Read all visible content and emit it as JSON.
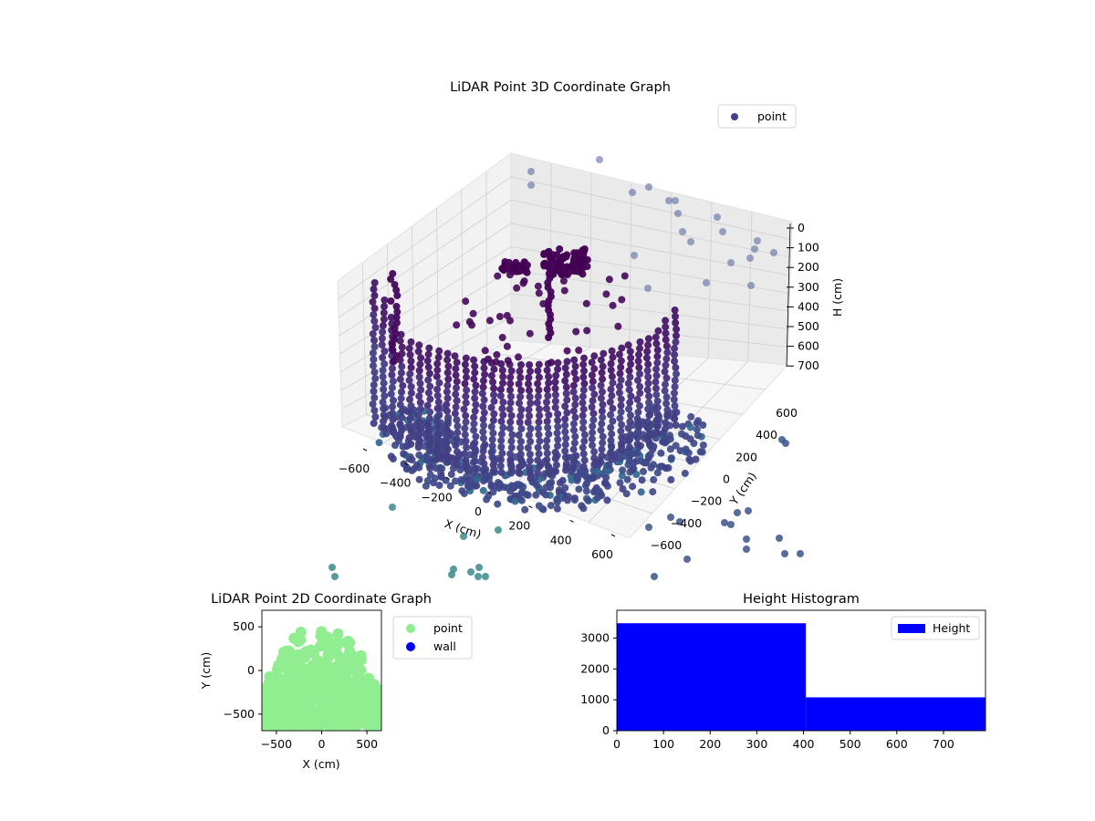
{
  "chart_data": [
    {
      "type": "scatter3d",
      "title": "LiDAR Point 3D Coordinate Graph",
      "xlabel": "X (cm)",
      "ylabel": "Y (cm)",
      "zlabel": "H (cm)",
      "x_ticks": [
        "−600",
        "−400",
        "−200",
        "0",
        "200",
        "400",
        "600"
      ],
      "y_ticks": [
        "−600",
        "−400",
        "−200",
        "0",
        "200",
        "400",
        "600"
      ],
      "z_ticks": [
        "0",
        "100",
        "200",
        "300",
        "400",
        "500",
        "600",
        "700"
      ],
      "xlim": [
        -650,
        650
      ],
      "ylim": [
        -650,
        650
      ],
      "zlim": [
        0,
        750
      ],
      "z_inverted": true,
      "legend": {
        "label": "point",
        "placement": "top-right"
      },
      "colors": {
        "high": "#440154",
        "mid": "#3b528b",
        "low": "#21918c"
      },
      "grid": true
    },
    {
      "type": "scatter",
      "title": "LiDAR Point 2D Coordinate Graph",
      "xlabel": "X (cm)",
      "ylabel": "Y (cm)",
      "x_ticks": [
        "−500",
        "0",
        "500"
      ],
      "y_ticks": [
        "500",
        "0",
        "−500"
      ],
      "xlim": [
        -660,
        660
      ],
      "ylim": [
        -690,
        690
      ],
      "series": [
        {
          "name": "point",
          "color": "#90ee90"
        },
        {
          "name": "wall",
          "color": "#0000ff"
        }
      ],
      "legend": {
        "placement": "outside-right"
      }
    },
    {
      "type": "bar",
      "title": "Height Histogram",
      "bins": [
        [
          0,
          405
        ],
        [
          405,
          790
        ]
      ],
      "values": [
        3480,
        1080
      ],
      "xlim": [
        0,
        790
      ],
      "ylim": [
        0,
        3900
      ],
      "x_ticks": [
        "0",
        "100",
        "200",
        "300",
        "400",
        "500",
        "600",
        "700"
      ],
      "y_ticks": [
        "0",
        "1000",
        "2000",
        "3000"
      ],
      "series": [
        {
          "name": "Height",
          "color": "#0000ff"
        }
      ],
      "legend": {
        "placement": "top-right"
      }
    }
  ]
}
